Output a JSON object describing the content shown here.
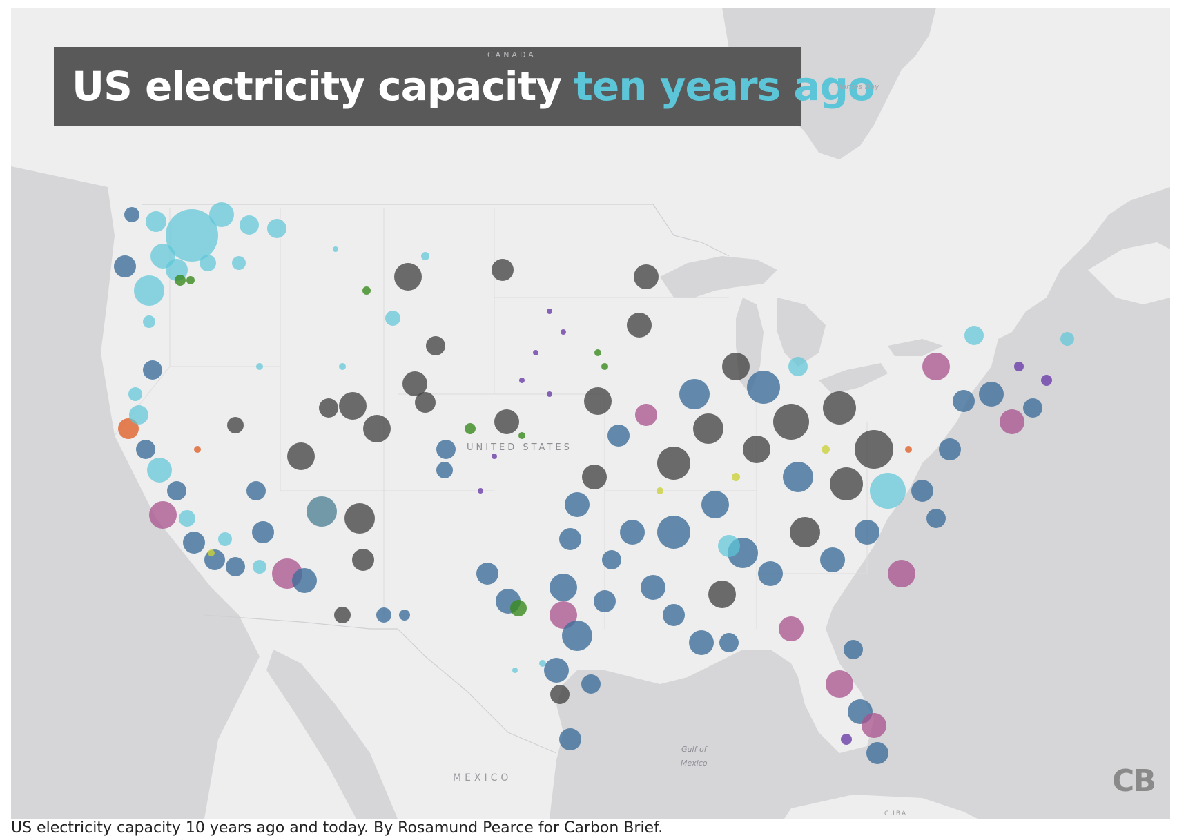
{
  "title": {
    "main": "US electricity capacity",
    "accent": "ten years ago"
  },
  "map_labels": {
    "canada": "CANADA",
    "united_states": "UNITED STATES",
    "mexico": "MEXICO",
    "james_bay": "James Bay",
    "gulf_line1": "Gulf of",
    "gulf_line2": "Mexico",
    "cuba": "CUBA"
  },
  "logo": "CB",
  "caption": "US electricity capacity 10 years ago and today. By Rosamund Pearce for Carbon Brief.",
  "colors": {
    "map_water": "#d6d6d9",
    "map_land": "#eeeeee",
    "title_box": "#595959",
    "title_accent": "#5cc6d8",
    "coal": "#3d3d3d",
    "natural_gas": "#3e6f9a",
    "hydro": "#5cc6d8",
    "nuclear": "#a8508c",
    "wind": "#3a8a1f",
    "petroleum": "#6a3fa8",
    "solar": "#c9d13b",
    "geothermal": "#e0602a",
    "biomass": "#6aa3c9"
  },
  "icons": {
    "logo": "cb-logo"
  }
}
